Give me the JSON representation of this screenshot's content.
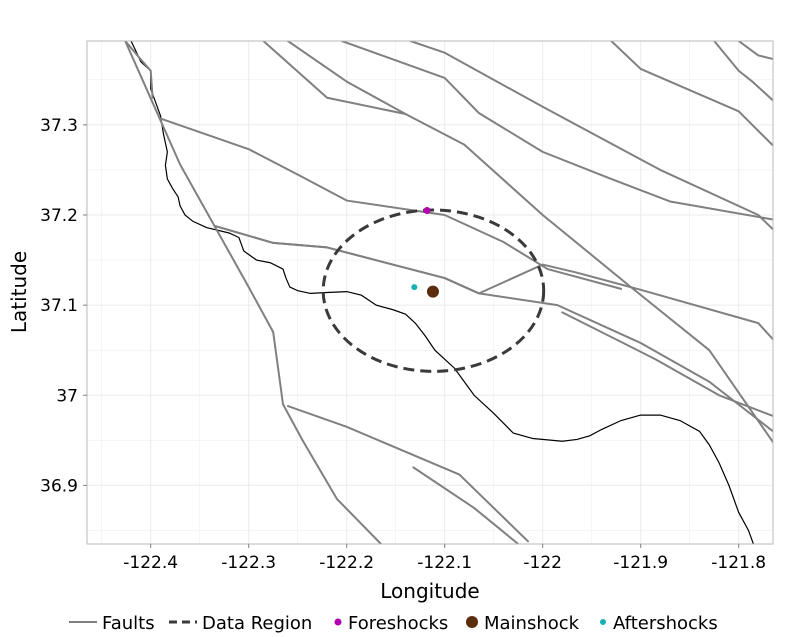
{
  "chart_data": {
    "type": "map",
    "xlabel": "Longitude",
    "ylabel": "Latitude",
    "xlim": [
      -122.465,
      -121.765
    ],
    "ylim": [
      36.835,
      37.393
    ],
    "x_ticks": [
      {
        "value": -122.4,
        "label": "-122.4"
      },
      {
        "value": -122.3,
        "label": "-122.3"
      },
      {
        "value": -122.2,
        "label": "-122.2"
      },
      {
        "value": -122.1,
        "label": "-122.1"
      },
      {
        "value": -122.0,
        "label": "-122"
      },
      {
        "value": -121.9,
        "label": "-121.9"
      },
      {
        "value": -121.8,
        "label": "-121.8"
      }
    ],
    "y_ticks": [
      {
        "value": 36.9,
        "label": "36.9"
      },
      {
        "value": 37.0,
        "label": "37"
      },
      {
        "value": 37.1,
        "label": "37.1"
      },
      {
        "value": 37.2,
        "label": "37.2"
      },
      {
        "value": 37.3,
        "label": "37.3"
      }
    ],
    "grid": true,
    "legend_position": "bottom",
    "legend": [
      {
        "key": "faults",
        "label": "Faults"
      },
      {
        "key": "region",
        "label": "Data Region"
      },
      {
        "key": "foreshocks",
        "label": "Foreshocks"
      },
      {
        "key": "mainshock",
        "label": "Mainshock"
      },
      {
        "key": "aftershocks",
        "label": "Aftershocks"
      }
    ],
    "colors": {
      "faults": "#808080",
      "region": "#3a3a3a",
      "foreshocks": "#b000b0",
      "mainshock": "#5a2d0c",
      "aftershocks": "#17b0b0",
      "coastline": "#000000",
      "grid": "#ebebeb"
    },
    "faults": [
      [
        [
          -122.426,
          37.393
        ],
        [
          -122.412,
          37.375
        ],
        [
          -122.4,
          37.36
        ],
        [
          -122.398,
          37.33
        ]
      ],
      [
        [
          -122.426,
          37.393
        ],
        [
          -122.37,
          37.256
        ],
        [
          -122.3,
          37.12
        ],
        [
          -122.275,
          37.07
        ],
        [
          -122.265,
          36.99
        ],
        [
          -122.245,
          36.95
        ],
        [
          -122.21,
          36.885
        ],
        [
          -122.165,
          36.835
        ]
      ],
      [
        [
          -122.39,
          37.307
        ],
        [
          -122.3,
          37.273
        ],
        [
          -122.245,
          37.242
        ],
        [
          -122.2,
          37.216
        ],
        [
          -122.1,
          37.2
        ],
        [
          -122.04,
          37.17
        ],
        [
          -121.995,
          37.14
        ],
        [
          -121.92,
          37.118
        ]
      ],
      [
        [
          -122.26,
          37.393
        ],
        [
          -122.2,
          37.348
        ],
        [
          -122.14,
          37.312
        ]
      ],
      [
        [
          -122.285,
          37.393
        ],
        [
          -122.22,
          37.33
        ],
        [
          -122.14,
          37.312
        ],
        [
          -122.08,
          37.278
        ],
        [
          -122.0,
          37.2
        ],
        [
          -121.91,
          37.12
        ],
        [
          -121.83,
          37.05
        ],
        [
          -121.765,
          36.948
        ]
      ],
      [
        [
          -122.205,
          37.393
        ],
        [
          -122.1,
          37.352
        ],
        [
          -122.065,
          37.313
        ],
        [
          -122.0,
          37.27
        ],
        [
          -121.935,
          37.242
        ],
        [
          -121.87,
          37.215
        ],
        [
          -121.765,
          37.195
        ]
      ],
      [
        [
          -122.135,
          37.393
        ],
        [
          -122.1,
          37.38
        ],
        [
          -122.0,
          37.32
        ],
        [
          -121.88,
          37.25
        ],
        [
          -121.78,
          37.2
        ],
        [
          -121.765,
          37.184
        ]
      ],
      [
        [
          -121.93,
          37.393
        ],
        [
          -121.9,
          37.362
        ],
        [
          -121.8,
          37.315
        ],
        [
          -121.765,
          37.277
        ]
      ],
      [
        [
          -121.825,
          37.393
        ],
        [
          -121.8,
          37.36
        ],
        [
          -121.785,
          37.347
        ],
        [
          -121.765,
          37.327
        ]
      ],
      [
        [
          -121.8,
          37.393
        ],
        [
          -121.79,
          37.385
        ],
        [
          -121.78,
          37.377
        ],
        [
          -121.765,
          37.373
        ]
      ],
      [
        [
          -122.335,
          37.188
        ],
        [
          -122.275,
          37.169
        ],
        [
          -122.22,
          37.164
        ],
        [
          -122.1,
          37.13
        ],
        [
          -122.065,
          37.113
        ],
        [
          -121.985,
          37.1
        ],
        [
          -121.9,
          37.058
        ],
        [
          -121.83,
          37.015
        ],
        [
          -121.765,
          36.96
        ]
      ],
      [
        [
          -122.335,
          37.188
        ],
        [
          -122.275,
          37.169
        ],
        [
          -122.22,
          37.164
        ],
        [
          -122.1,
          37.13
        ],
        [
          -122.065,
          37.113
        ],
        [
          -122.0,
          37.145
        ],
        [
          -121.965,
          37.136
        ],
        [
          -121.9,
          37.117
        ],
        [
          -121.78,
          37.08
        ],
        [
          -121.765,
          37.062
        ]
      ],
      [
        [
          -121.98,
          37.092
        ],
        [
          -121.885,
          37.04
        ],
        [
          -121.82,
          37.0
        ],
        [
          -121.765,
          36.977
        ]
      ],
      [
        [
          -122.26,
          36.988
        ],
        [
          -122.2,
          36.965
        ],
        [
          -122.085,
          36.912
        ],
        [
          -122.015,
          36.838
        ]
      ],
      [
        [
          -122.132,
          36.92
        ],
        [
          -122.07,
          36.875
        ],
        [
          -122.025,
          36.835
        ]
      ]
    ],
    "coastline": [
      [
        -122.42,
        37.393
      ],
      [
        -122.41,
        37.37
      ],
      [
        -122.4,
        37.36
      ],
      [
        -122.4,
        37.34
      ],
      [
        -122.39,
        37.31
      ],
      [
        -122.387,
        37.29
      ],
      [
        -122.383,
        37.27
      ],
      [
        -122.385,
        37.255
      ],
      [
        -122.383,
        37.24
      ],
      [
        -122.378,
        37.23
      ],
      [
        -122.372,
        37.22
      ],
      [
        -122.37,
        37.21
      ],
      [
        -122.365,
        37.2
      ],
      [
        -122.357,
        37.193
      ],
      [
        -122.343,
        37.186
      ],
      [
        -122.32,
        37.18
      ],
      [
        -122.31,
        37.175
      ],
      [
        -122.305,
        37.16
      ],
      [
        -122.292,
        37.15
      ],
      [
        -122.278,
        37.147
      ],
      [
        -122.265,
        37.14
      ],
      [
        -122.262,
        37.13
      ],
      [
        -122.258,
        37.12
      ],
      [
        -122.25,
        37.116
      ],
      [
        -122.237,
        37.113
      ],
      [
        -122.22,
        37.114
      ],
      [
        -122.2,
        37.115
      ],
      [
        -122.185,
        37.111
      ],
      [
        -122.17,
        37.1
      ],
      [
        -122.153,
        37.095
      ],
      [
        -122.14,
        37.09
      ],
      [
        -122.13,
        37.08
      ],
      [
        -122.12,
        37.066
      ],
      [
        -122.11,
        37.05
      ],
      [
        -122.09,
        37.03
      ],
      [
        -122.07,
        37.0
      ],
      [
        -122.05,
        36.98
      ],
      [
        -122.03,
        36.958
      ],
      [
        -122.01,
        36.952
      ],
      [
        -121.98,
        36.949
      ],
      [
        -121.965,
        36.951
      ],
      [
        -121.952,
        36.955
      ],
      [
        -121.94,
        36.962
      ],
      [
        -121.92,
        36.972
      ],
      [
        -121.9,
        36.978
      ],
      [
        -121.88,
        36.978
      ],
      [
        -121.86,
        36.972
      ],
      [
        -121.84,
        36.96
      ],
      [
        -121.83,
        36.945
      ],
      [
        -121.82,
        36.925
      ],
      [
        -121.81,
        36.9
      ],
      [
        -121.8,
        36.87
      ],
      [
        -121.79,
        36.85
      ],
      [
        -121.785,
        36.835
      ]
    ],
    "data_region": {
      "center_lon": -122.1115,
      "center_lat": 37.116,
      "radius_deg_lon": 0.1125,
      "radius_deg_lat": 0.0895
    },
    "foreshocks": [
      {
        "lon": -122.118,
        "lat": 37.205
      }
    ],
    "mainshock": [
      {
        "lon": -122.112,
        "lat": 37.115
      }
    ],
    "aftershocks": [
      {
        "lon": -122.131,
        "lat": 37.12
      }
    ]
  }
}
